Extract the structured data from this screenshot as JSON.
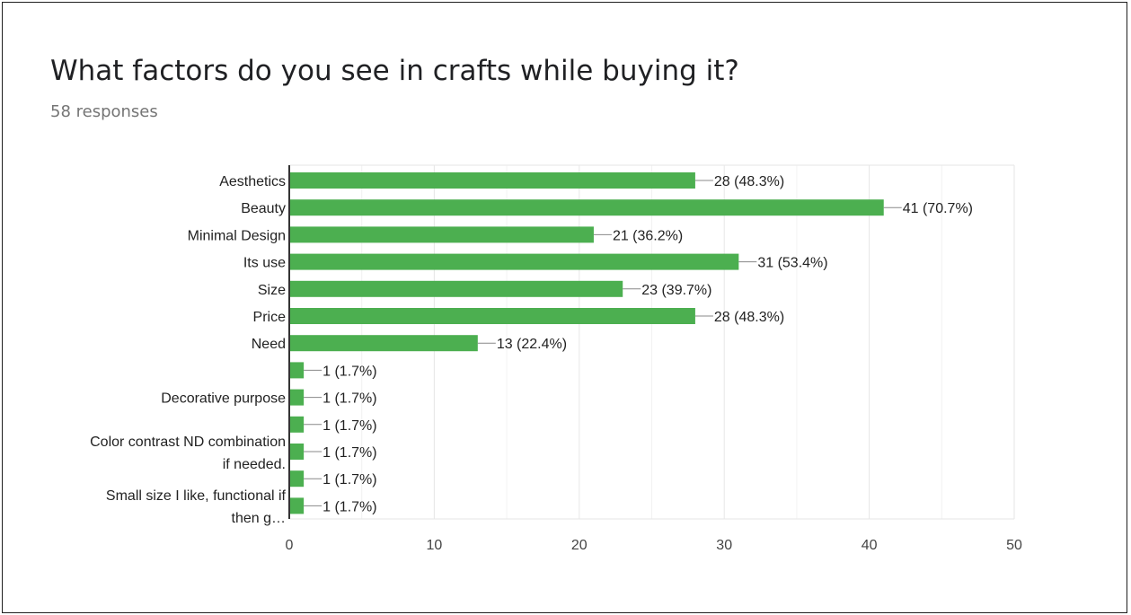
{
  "header": {
    "title": "What factors do you see in crafts while buying it?",
    "responses": "58 responses"
  },
  "colors": {
    "bar": "#4caf50",
    "grid": "#e6e6e6",
    "axis": "#333333"
  },
  "chart_data": {
    "type": "bar",
    "orientation": "horizontal",
    "title": "What factors do you see in crafts while buying it?",
    "subtitle": "58 responses",
    "xlim": [
      0,
      50
    ],
    "xticks": [
      0,
      10,
      20,
      30,
      40,
      50
    ],
    "grid": true,
    "legend": "none",
    "categories": [
      "Aesthetics",
      "Beauty",
      "Minimal Design",
      "Its use",
      "Size",
      "Price",
      "Need",
      "",
      "Decorative purpose",
      "",
      "",
      "",
      ""
    ],
    "values": [
      28,
      41,
      21,
      31,
      23,
      28,
      13,
      1,
      1,
      1,
      1,
      1,
      1
    ],
    "value_labels": [
      "28 (48.3%)",
      "41 (70.7%)",
      "21 (36.2%)",
      "31 (53.4%)",
      "23 (39.7%)",
      "28 (48.3%)",
      "13 (22.4%)",
      "1 (1.7%)",
      "1 (1.7%)",
      "1 (1.7%)",
      "1 (1.7%)",
      "1 (1.7%)",
      "1 (1.7%)"
    ],
    "wrapped_labels": [
      {
        "lines": [
          "Color contrast ND combination",
          "if needed."
        ]
      },
      {
        "lines": [
          "Small size I like, functional if",
          "then g…"
        ]
      }
    ]
  }
}
